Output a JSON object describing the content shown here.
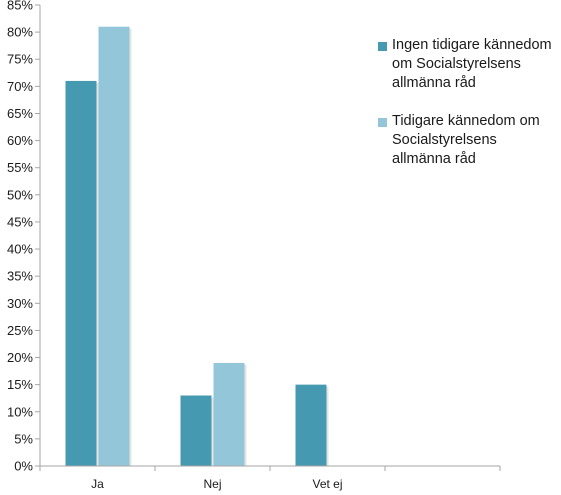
{
  "colors": {
    "series_1": "#4599b0",
    "series_2": "#93c6d8",
    "axis": "#a6a6a6"
  },
  "chart_data": {
    "type": "bar",
    "categories": [
      "Ja",
      "Nej",
      "Vet ej"
    ],
    "series": [
      {
        "name": "Ingen tidigare kännedom om Socialstyrelsens allmänna råd",
        "values": [
          71,
          13,
          15
        ]
      },
      {
        "name": "Tidigare kännedom om Socialstyrelsens allmänna råd",
        "values": [
          81,
          19,
          0
        ]
      }
    ],
    "ylim": [
      0,
      85
    ],
    "yticks": [
      0,
      5,
      10,
      15,
      20,
      25,
      30,
      35,
      40,
      45,
      50,
      55,
      60,
      65,
      70,
      75,
      80,
      85
    ],
    "ytick_labels": [
      "0%",
      "5%",
      "10%",
      "15%",
      "20%",
      "25%",
      "30%",
      "35%",
      "40%",
      "45%",
      "50%",
      "55%",
      "60%",
      "65%",
      "70%",
      "75%",
      "80%",
      "85%"
    ],
    "extra_empty_category_slots": 1,
    "grid": false,
    "legend_position": "top-right",
    "title": "",
    "xlabel": "",
    "ylabel": ""
  }
}
